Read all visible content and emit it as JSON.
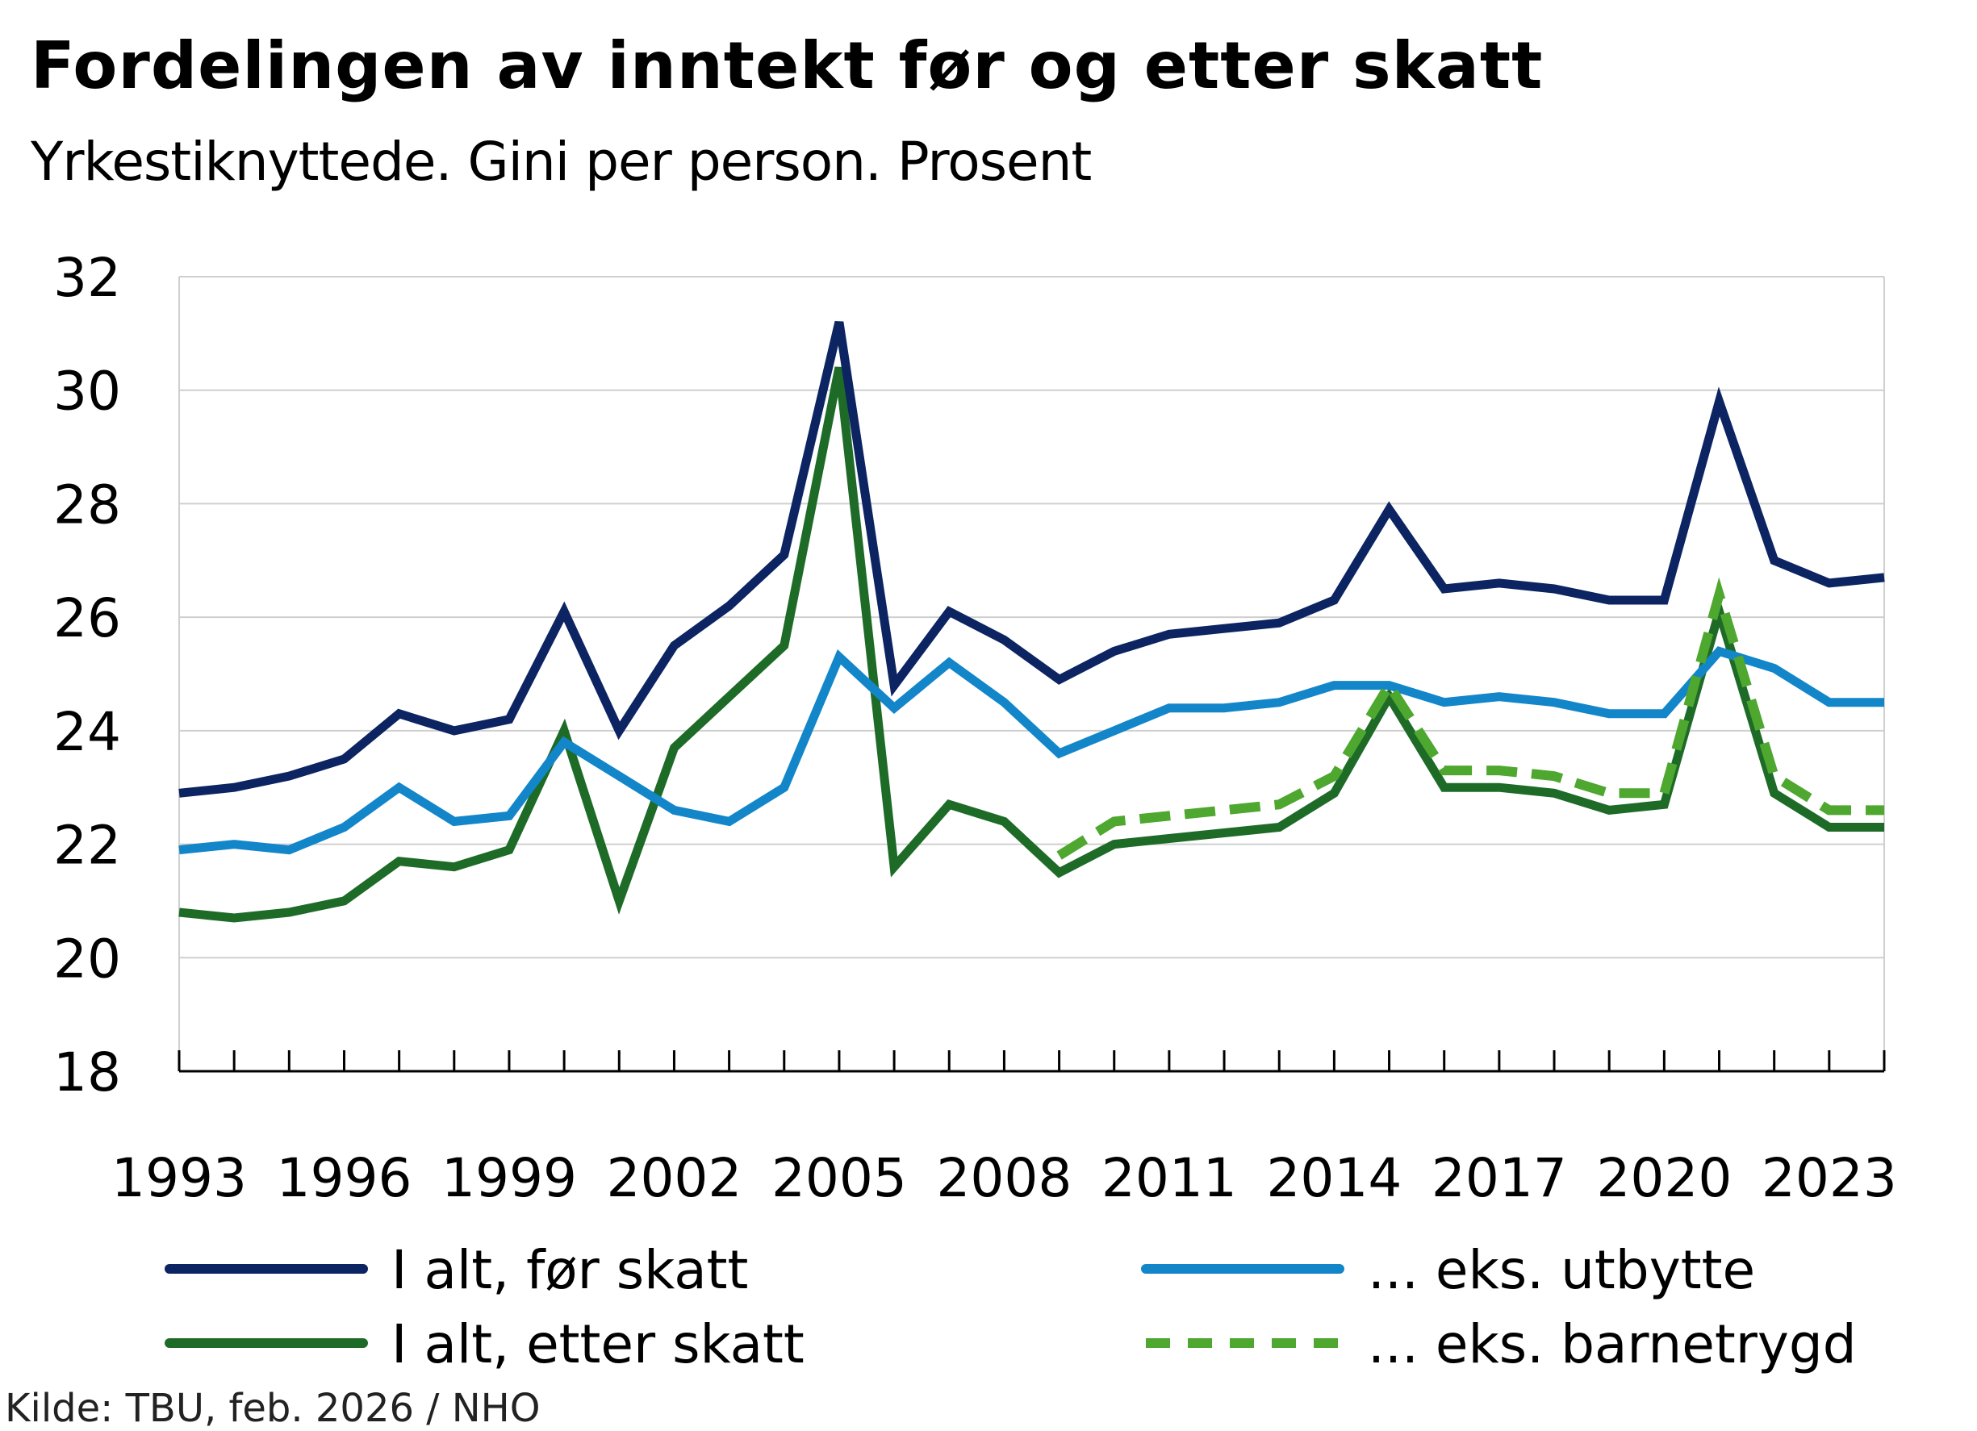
{
  "chart_data": {
    "type": "line",
    "title": "Fordelingen av inntekt før og etter skatt",
    "subtitle": "Yrkestiknyttede. Gini per person. Prosent",
    "source": "Kilde: TBU, feb. 2026 / NHO",
    "xlabel": "",
    "ylabel": "",
    "x": [
      1993,
      1994,
      1995,
      1996,
      1997,
      1998,
      1999,
      2000,
      2001,
      2002,
      2003,
      2004,
      2005,
      2006,
      2007,
      2008,
      2009,
      2010,
      2011,
      2012,
      2013,
      2014,
      2015,
      2016,
      2017,
      2018,
      2019,
      2020,
      2021,
      2022,
      2023,
      2024
    ],
    "x_tick_labels": [
      "1993",
      "1996",
      "1999",
      "2002",
      "2005",
      "2008",
      "2011",
      "2014",
      "2017",
      "2020",
      "2023"
    ],
    "ylim": [
      18,
      32
    ],
    "y_ticks": [
      18,
      20,
      22,
      24,
      26,
      28,
      30,
      32
    ],
    "grid": true,
    "legend_position": "bottom",
    "series": [
      {
        "name": "I alt, før skatt",
        "color": "#0c2461",
        "dashed": false,
        "values": [
          22.9,
          23.0,
          23.2,
          23.5,
          24.3,
          24.0,
          24.2,
          26.1,
          24.0,
          25.5,
          26.2,
          27.1,
          31.2,
          24.8,
          26.1,
          25.6,
          24.9,
          25.4,
          25.7,
          25.8,
          25.9,
          26.3,
          27.9,
          26.5,
          26.6,
          26.5,
          26.3,
          26.3,
          29.8,
          27.0,
          26.6,
          26.7
        ]
      },
      {
        "name": "... eks. utbytte",
        "color": "#1386c9",
        "dashed": false,
        "values": [
          21.9,
          22.0,
          21.9,
          22.3,
          23.0,
          22.4,
          22.5,
          23.8,
          23.2,
          22.6,
          22.4,
          23.0,
          25.3,
          24.4,
          25.2,
          24.5,
          23.6,
          24.0,
          24.4,
          24.4,
          24.5,
          24.8,
          24.8,
          24.5,
          24.6,
          24.5,
          24.3,
          24.3,
          25.4,
          25.1,
          24.5,
          24.5
        ]
      },
      {
        "name": "I alt, etter skatt",
        "color": "#1e6b28",
        "dashed": false,
        "values": [
          20.8,
          20.7,
          20.8,
          21.0,
          21.7,
          21.6,
          21.9,
          24.0,
          21.0,
          23.7,
          24.6,
          25.5,
          30.4,
          21.6,
          22.7,
          22.4,
          21.5,
          22.0,
          22.1,
          22.2,
          22.3,
          22.9,
          24.6,
          23.0,
          23.0,
          22.9,
          22.6,
          22.7,
          26.1,
          22.9,
          22.3,
          22.3
        ]
      },
      {
        "name": "... eks. barnetrygd",
        "color": "#4ea72e",
        "dashed": true,
        "values": [
          null,
          null,
          null,
          null,
          null,
          null,
          null,
          null,
          null,
          null,
          null,
          null,
          null,
          null,
          null,
          null,
          21.8,
          22.4,
          22.5,
          22.6,
          22.7,
          23.2,
          24.8,
          23.3,
          23.3,
          23.2,
          22.9,
          22.9,
          26.4,
          23.2,
          22.6,
          22.6
        ]
      }
    ],
    "legend_order": [
      0,
      1,
      2,
      3
    ]
  }
}
